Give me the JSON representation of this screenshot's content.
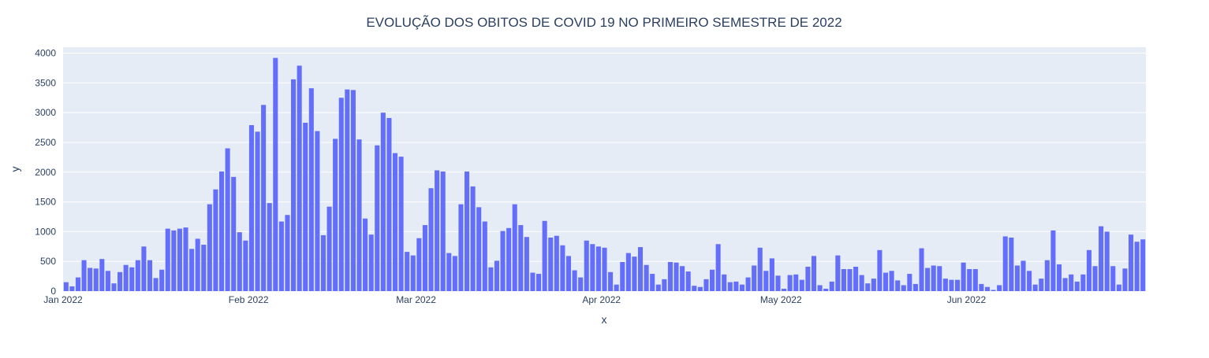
{
  "chart_data": {
    "type": "bar",
    "title": "EVOLUÇÃO DOS OBITOS DE COVID 19 NO PRIMEIRO SEMESTRE DE 2022",
    "xlabel": "x",
    "ylabel": "y",
    "x_start": "2022-01-01",
    "x_end": "2022-06-30",
    "x_ticks": [
      {
        "date": "2022-01-01",
        "label": "Jan 2022"
      },
      {
        "date": "2022-02-01",
        "label": "Feb 2022"
      },
      {
        "date": "2022-03-01",
        "label": "Mar 2022"
      },
      {
        "date": "2022-04-01",
        "label": "Apr 2022"
      },
      {
        "date": "2022-05-01",
        "label": "May 2022"
      },
      {
        "date": "2022-06-01",
        "label": "Jun 2022"
      }
    ],
    "ylim": [
      0,
      4100
    ],
    "y_ticks": [
      0,
      500,
      1000,
      1500,
      2000,
      2500,
      3000,
      3500,
      4000
    ],
    "grid": true,
    "colors": {
      "bar": "#636efa",
      "plot_bg": "#e5ecf6",
      "grid": "#ffffff",
      "text": "#2a3f5f"
    },
    "values": [
      150,
      80,
      230,
      520,
      390,
      380,
      540,
      340,
      130,
      320,
      440,
      400,
      520,
      750,
      520,
      220,
      360,
      1050,
      1020,
      1050,
      1070,
      710,
      880,
      780,
      1460,
      1710,
      2010,
      2400,
      1920,
      990,
      850,
      2790,
      2680,
      3130,
      1480,
      3920,
      1170,
      1280,
      3560,
      3790,
      2830,
      3410,
      2690,
      940,
      1420,
      2560,
      3250,
      3390,
      3380,
      2550,
      1220,
      950,
      2450,
      3000,
      2910,
      2320,
      2260,
      660,
      600,
      890,
      1110,
      1730,
      2030,
      2010,
      640,
      590,
      1460,
      2010,
      1760,
      1410,
      1170,
      400,
      510,
      1010,
      1060,
      1460,
      1110,
      910,
      310,
      290,
      1180,
      900,
      930,
      770,
      590,
      350,
      230,
      850,
      790,
      750,
      730,
      320,
      110,
      490,
      640,
      580,
      740,
      440,
      290,
      110,
      200,
      490,
      480,
      420,
      330,
      90,
      70,
      200,
      360,
      790,
      280,
      150,
      160,
      110,
      230,
      430,
      730,
      340,
      550,
      260,
      40,
      270,
      280,
      190,
      410,
      590,
      100,
      40,
      160,
      600,
      370,
      370,
      410,
      270,
      130,
      210,
      690,
      310,
      340,
      180,
      100,
      290,
      120,
      720,
      390,
      430,
      420,
      210,
      190,
      190,
      480,
      370,
      370,
      120,
      70,
      20,
      100,
      920,
      900,
      430,
      510,
      340,
      110,
      210,
      520,
      1020,
      450,
      220,
      280,
      160,
      280,
      690,
      420,
      1090,
      1000,
      420,
      110,
      380,
      950,
      830,
      870
    ]
  }
}
